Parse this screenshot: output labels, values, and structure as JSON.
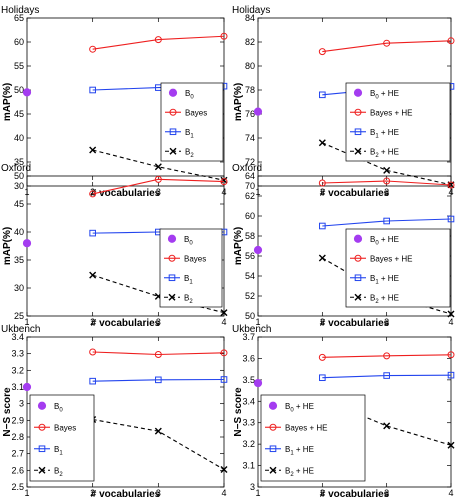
{
  "chart_data": [
    {
      "type": "line",
      "title": "Holidays",
      "xlabel": "# vocabularies",
      "ylabel": "mAP(%)",
      "xlim": [
        1,
        4
      ],
      "ylim": [
        30,
        65
      ],
      "xticks": [
        "1",
        "2",
        "3",
        "4"
      ],
      "yticks": [
        "30",
        "35",
        "40",
        "45",
        "50",
        "55",
        "60",
        "65"
      ],
      "legend_position": "bottom-right",
      "series": [
        {
          "name": "B",
          "sub": "0",
          "suffix": "",
          "style": "point",
          "color": "#a43cf0",
          "x": [
            1
          ],
          "y": [
            49.5
          ]
        },
        {
          "name": "Bayes",
          "sub": "",
          "suffix": "",
          "style": "red",
          "color": "#ee1f1f",
          "x": [
            2,
            3,
            4
          ],
          "y": [
            58.5,
            60.5,
            61.2
          ]
        },
        {
          "name": "B",
          "sub": "1",
          "suffix": "",
          "style": "blue",
          "color": "#2244ee",
          "x": [
            2,
            3,
            4
          ],
          "y": [
            50.0,
            50.5,
            50.8
          ]
        },
        {
          "name": "B",
          "sub": "2",
          "suffix": "",
          "style": "black",
          "color": "#000000",
          "x": [
            2,
            3,
            4
          ],
          "y": [
            37.5,
            34.0,
            31.2
          ]
        }
      ]
    },
    {
      "type": "line",
      "title": "Holidays",
      "xlabel": "# vocabularies",
      "ylabel": "mAP(%)",
      "xlim": [
        1,
        4
      ],
      "ylim": [
        70,
        84
      ],
      "xticks": [
        "1",
        "2",
        "3",
        "4"
      ],
      "yticks": [
        "70",
        "72",
        "74",
        "76",
        "78",
        "80",
        "82",
        "84"
      ],
      "legend_position": "bottom-right",
      "series": [
        {
          "name": "B",
          "sub": "0",
          "suffix": " + HE",
          "style": "point",
          "color": "#a43cf0",
          "x": [
            1
          ],
          "y": [
            76.2
          ]
        },
        {
          "name": "Bayes + HE",
          "sub": "",
          "suffix": "",
          "style": "red",
          "color": "#ee1f1f",
          "x": [
            2,
            3,
            4
          ],
          "y": [
            81.2,
            81.9,
            82.1
          ]
        },
        {
          "name": "B",
          "sub": "1",
          "suffix": " + HE",
          "style": "blue",
          "color": "#2244ee",
          "x": [
            2,
            3,
            4
          ],
          "y": [
            77.6,
            78.1,
            78.3
          ]
        },
        {
          "name": "B",
          "sub": "2",
          "suffix": " + HE",
          "style": "black",
          "color": "#000000",
          "x": [
            2,
            3,
            4
          ],
          "y": [
            73.6,
            71.3,
            70.1
          ]
        }
      ]
    },
    {
      "type": "line",
      "title": "Oxford",
      "xlabel": "# vocabularies",
      "ylabel": "mAP(%)",
      "xlim": [
        1,
        4
      ],
      "ylim": [
        25,
        50
      ],
      "xticks": [
        "1",
        "2",
        "3",
        "4"
      ],
      "yticks": [
        "25",
        "30",
        "35",
        "40",
        "45",
        "50"
      ],
      "legend_position": "bottom-right",
      "series": [
        {
          "name": "B",
          "sub": "0",
          "suffix": "",
          "style": "point",
          "color": "#a43cf0",
          "x": [
            1
          ],
          "y": [
            38.0
          ]
        },
        {
          "name": "Bayes",
          "sub": "",
          "suffix": "",
          "style": "red",
          "color": "#ee1f1f",
          "x": [
            2,
            3,
            4
          ],
          "y": [
            46.8,
            49.4,
            49.0
          ]
        },
        {
          "name": "B",
          "sub": "1",
          "suffix": "",
          "style": "blue",
          "color": "#2244ee",
          "x": [
            2,
            3,
            4
          ],
          "y": [
            39.8,
            40.0,
            40.0
          ]
        },
        {
          "name": "B",
          "sub": "2",
          "suffix": "",
          "style": "black",
          "color": "#000000",
          "x": [
            2,
            3,
            4
          ],
          "y": [
            32.3,
            28.5,
            25.6
          ]
        }
      ]
    },
    {
      "type": "line",
      "title": "Oxford",
      "xlabel": "# vocabularies",
      "ylabel": "mAP(%)",
      "xlim": [
        1,
        4
      ],
      "ylim": [
        50,
        64
      ],
      "xticks": [
        "1",
        "2",
        "3",
        "4"
      ],
      "yticks": [
        "50",
        "52",
        "54",
        "56",
        "58",
        "60",
        "62",
        "64"
      ],
      "legend_position": "bottom-right",
      "series": [
        {
          "name": "B",
          "sub": "0",
          "suffix": " + HE",
          "style": "point",
          "color": "#a43cf0",
          "x": [
            1
          ],
          "y": [
            56.6
          ]
        },
        {
          "name": "Bayes + HE",
          "sub": "",
          "suffix": "",
          "style": "red",
          "color": "#ee1f1f",
          "x": [
            2,
            3,
            4
          ],
          "y": [
            63.3,
            63.5,
            63.1
          ]
        },
        {
          "name": "B",
          "sub": "1",
          "suffix": " + HE",
          "style": "blue",
          "color": "#2244ee",
          "x": [
            2,
            3,
            4
          ],
          "y": [
            59.0,
            59.5,
            59.7
          ]
        },
        {
          "name": "B",
          "sub": "2",
          "suffix": " + HE",
          "style": "black",
          "color": "#000000",
          "x": [
            2,
            3,
            4
          ],
          "y": [
            55.8,
            52.1,
            50.2
          ]
        }
      ]
    },
    {
      "type": "line",
      "title": "Ukbench",
      "xlabel": "# vocabularies",
      "ylabel": "N−S score",
      "xlim": [
        1,
        4
      ],
      "ylim": [
        2.5,
        3.4
      ],
      "xticks": [
        "1",
        "2",
        "3",
        "4"
      ],
      "yticks": [
        "2.5",
        "2.6",
        "2.7",
        "2.8",
        "2.9",
        "3",
        "3.1",
        "3.2",
        "3.3",
        "3.4"
      ],
      "legend_position": "bottom-left",
      "series": [
        {
          "name": "B",
          "sub": "0",
          "suffix": "",
          "style": "point",
          "color": "#a43cf0",
          "x": [
            1
          ],
          "y": [
            3.1
          ]
        },
        {
          "name": "Bayes",
          "sub": "",
          "suffix": "",
          "style": "red",
          "color": "#ee1f1f",
          "x": [
            2,
            3,
            4
          ],
          "y": [
            3.31,
            3.295,
            3.305
          ]
        },
        {
          "name": "B",
          "sub": "1",
          "suffix": "",
          "style": "blue",
          "color": "#2244ee",
          "x": [
            2,
            3,
            4
          ],
          "y": [
            3.135,
            3.143,
            3.145
          ]
        },
        {
          "name": "B",
          "sub": "2",
          "suffix": "",
          "style": "black",
          "color": "#000000",
          "x": [
            2,
            3,
            4
          ],
          "y": [
            2.905,
            2.835,
            2.605
          ]
        }
      ]
    },
    {
      "type": "line",
      "title": "Ukbench",
      "xlabel": "# vocabularies",
      "ylabel": "N−S score",
      "xlim": [
        1,
        4
      ],
      "ylim": [
        3.0,
        3.7
      ],
      "xticks": [
        "1",
        "2",
        "3",
        "4"
      ],
      "yticks": [
        "3",
        "3.1",
        "3.2",
        "3.3",
        "3.4",
        "3.5",
        "3.6",
        "3.7"
      ],
      "legend_position": "bottom-left",
      "series": [
        {
          "name": "B",
          "sub": "0",
          "suffix": " + HE",
          "style": "point",
          "color": "#a43cf0",
          "x": [
            1
          ],
          "y": [
            3.485
          ]
        },
        {
          "name": "Bayes + HE",
          "sub": "",
          "suffix": "",
          "style": "red",
          "color": "#ee1f1f",
          "x": [
            2,
            3,
            4
          ],
          "y": [
            3.605,
            3.612,
            3.617
          ]
        },
        {
          "name": "B",
          "sub": "1",
          "suffix": " + HE",
          "style": "blue",
          "color": "#2244ee",
          "x": [
            2,
            3,
            4
          ],
          "y": [
            3.51,
            3.52,
            3.522
          ]
        },
        {
          "name": "B",
          "sub": "2",
          "suffix": " + HE",
          "style": "black",
          "color": "#000000",
          "x": [
            2,
            3,
            4
          ],
          "y": [
            3.41,
            3.285,
            3.195
          ]
        }
      ]
    }
  ]
}
